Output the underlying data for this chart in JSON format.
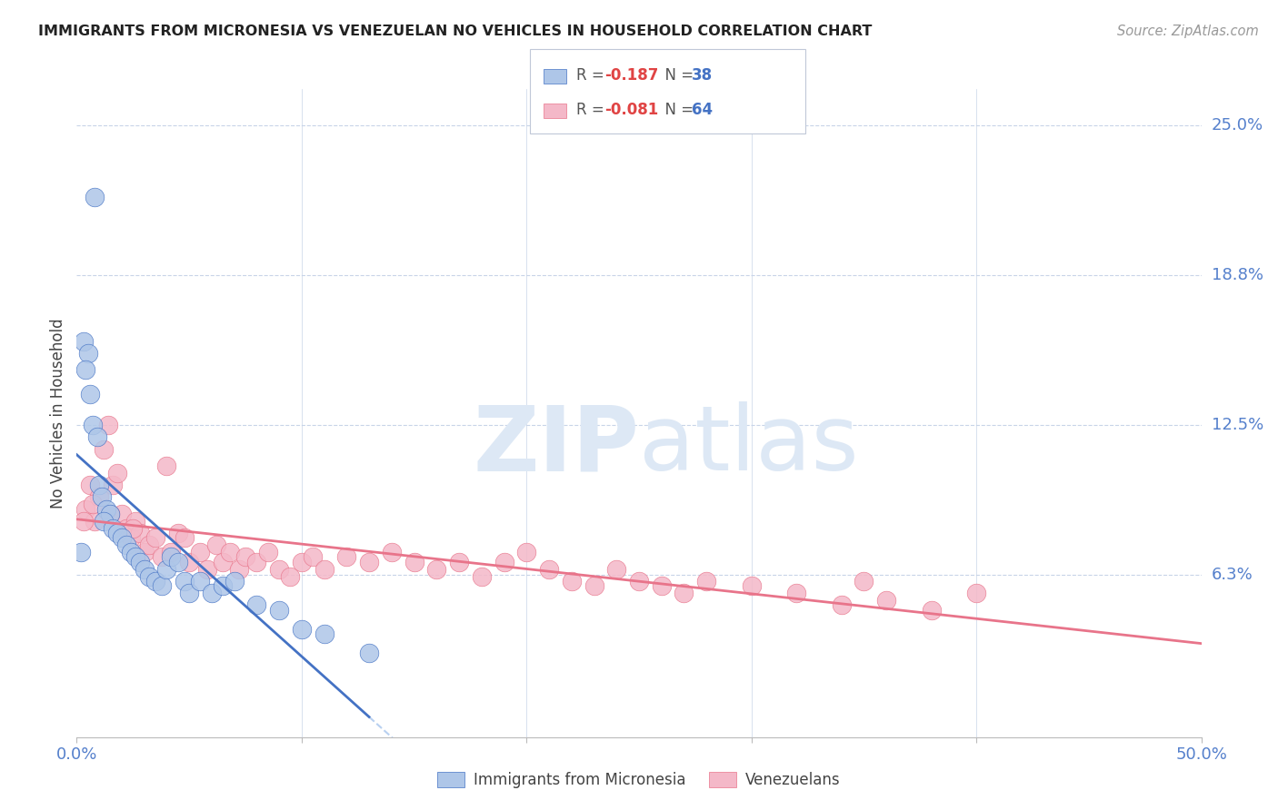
{
  "title": "IMMIGRANTS FROM MICRONESIA VS VENEZUELAN NO VEHICLES IN HOUSEHOLD CORRELATION CHART",
  "source": "Source: ZipAtlas.com",
  "ylabel": "No Vehicles in Household",
  "xlim": [
    0.0,
    0.5
  ],
  "ylim": [
    -0.005,
    0.265
  ],
  "legend_r_micro": "-0.187",
  "legend_n_micro": "38",
  "legend_r_venz": "-0.081",
  "legend_n_venz": "64",
  "micro_color": "#aec6e8",
  "venz_color": "#f4b8c8",
  "micro_line_color": "#4472c4",
  "venz_line_color": "#e8748a",
  "trend_dash_color": "#b8d0f0",
  "background_color": "#ffffff",
  "grid_color": "#c8d4e8",
  "ytick_positions": [
    0.0,
    0.0625,
    0.125,
    0.1875,
    0.25
  ],
  "ytick_labels": [
    "",
    "6.3%",
    "12.5%",
    "18.8%",
    "25.0%"
  ],
  "xtick_positions": [
    0.0,
    0.1,
    0.2,
    0.3,
    0.4,
    0.5
  ],
  "xtick_labels": [
    "0.0%",
    "",
    "",
    "",
    "",
    "50.0%"
  ],
  "micro_scatter_x": [
    0.008,
    0.003,
    0.005,
    0.004,
    0.006,
    0.007,
    0.009,
    0.01,
    0.011,
    0.013,
    0.015,
    0.012,
    0.016,
    0.018,
    0.02,
    0.022,
    0.024,
    0.026,
    0.028,
    0.03,
    0.032,
    0.035,
    0.038,
    0.04,
    0.042,
    0.045,
    0.048,
    0.05,
    0.055,
    0.06,
    0.065,
    0.07,
    0.08,
    0.09,
    0.1,
    0.11,
    0.13,
    0.002
  ],
  "micro_scatter_y": [
    0.22,
    0.16,
    0.155,
    0.148,
    0.138,
    0.125,
    0.12,
    0.1,
    0.095,
    0.09,
    0.088,
    0.085,
    0.082,
    0.08,
    0.078,
    0.075,
    0.072,
    0.07,
    0.068,
    0.065,
    0.062,
    0.06,
    0.058,
    0.065,
    0.07,
    0.068,
    0.06,
    0.055,
    0.06,
    0.055,
    0.058,
    0.06,
    0.05,
    0.048,
    0.04,
    0.038,
    0.03,
    0.072
  ],
  "venz_scatter_x": [
    0.004,
    0.006,
    0.008,
    0.01,
    0.012,
    0.014,
    0.016,
    0.018,
    0.02,
    0.022,
    0.024,
    0.026,
    0.028,
    0.03,
    0.032,
    0.035,
    0.038,
    0.04,
    0.042,
    0.045,
    0.048,
    0.05,
    0.055,
    0.058,
    0.062,
    0.065,
    0.068,
    0.072,
    0.075,
    0.08,
    0.085,
    0.09,
    0.095,
    0.1,
    0.105,
    0.11,
    0.12,
    0.13,
    0.14,
    0.15,
    0.16,
    0.17,
    0.18,
    0.19,
    0.2,
    0.21,
    0.22,
    0.23,
    0.24,
    0.25,
    0.26,
    0.27,
    0.28,
    0.3,
    0.32,
    0.34,
    0.36,
    0.38,
    0.4,
    0.003,
    0.007,
    0.015,
    0.025,
    0.35
  ],
  "venz_scatter_y": [
    0.09,
    0.1,
    0.085,
    0.095,
    0.115,
    0.125,
    0.1,
    0.105,
    0.088,
    0.082,
    0.078,
    0.085,
    0.08,
    0.072,
    0.075,
    0.078,
    0.07,
    0.108,
    0.072,
    0.08,
    0.078,
    0.068,
    0.072,
    0.065,
    0.075,
    0.068,
    0.072,
    0.065,
    0.07,
    0.068,
    0.072,
    0.065,
    0.062,
    0.068,
    0.07,
    0.065,
    0.07,
    0.068,
    0.072,
    0.068,
    0.065,
    0.068,
    0.062,
    0.068,
    0.072,
    0.065,
    0.06,
    0.058,
    0.065,
    0.06,
    0.058,
    0.055,
    0.06,
    0.058,
    0.055,
    0.05,
    0.052,
    0.048,
    0.055,
    0.085,
    0.092,
    0.088,
    0.082,
    0.06
  ]
}
